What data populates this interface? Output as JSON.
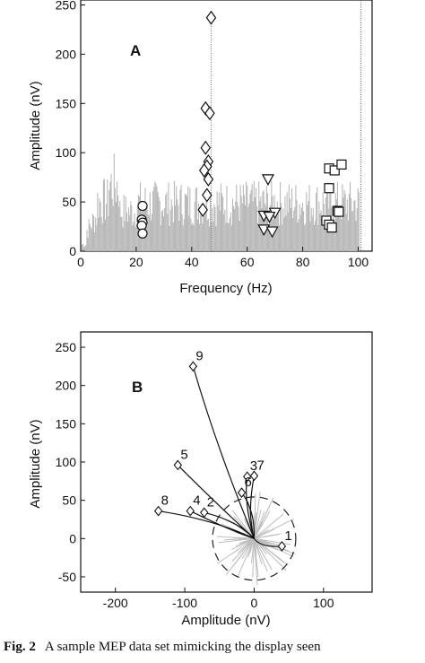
{
  "chart_data": [
    {
      "type": "scatter",
      "panel_label": "A",
      "xlabel": "Frequency (Hz)",
      "ylabel": "Amplitude (nV)",
      "xlim": [
        0,
        105
      ],
      "ylim": [
        0,
        255
      ],
      "xticks": [
        0,
        20,
        40,
        60,
        80,
        100
      ],
      "yticks": [
        0,
        50,
        100,
        150,
        200,
        250
      ],
      "grid": false,
      "background_spectrum_color": "#b9b9b9",
      "series": [
        {
          "marker": "circle",
          "points": [
            [
              22.3,
              46
            ],
            [
              22.0,
              32
            ],
            [
              22.3,
              29
            ],
            [
              22.0,
              26
            ],
            [
              22.3,
              18
            ]
          ]
        },
        {
          "marker": "diamond",
          "points": [
            [
              47,
              237
            ],
            [
              45,
              145
            ],
            [
              46.5,
              140
            ],
            [
              45,
              105
            ],
            [
              46,
              91
            ],
            [
              45.5,
              86
            ],
            [
              44.5,
              82
            ],
            [
              45.5,
              57
            ],
            [
              44,
              42
            ],
            [
              46,
              73
            ]
          ]
        },
        {
          "marker": "triangle-down",
          "points": [
            [
              67.5,
              73
            ],
            [
              66,
              36
            ],
            [
              70,
              39
            ],
            [
              68,
              35
            ],
            [
              66,
              22
            ],
            [
              69,
              20
            ]
          ]
        },
        {
          "marker": "square",
          "points": [
            [
              89.5,
              84
            ],
            [
              91.5,
              82
            ],
            [
              94,
              88
            ],
            [
              89.5,
              64
            ],
            [
              92.5,
              41
            ],
            [
              93,
              40
            ],
            [
              88.5,
              31
            ],
            [
              89.5,
              27
            ],
            [
              90.5,
              24
            ]
          ]
        }
      ],
      "threshold_line": {
        "x": 101
      }
    },
    {
      "type": "scatter",
      "panel_label": "B",
      "xlabel": "Amplitude (nV)",
      "ylabel": "Amplitude (nV)",
      "xlim": [
        -250,
        170
      ],
      "ylim": [
        -70,
        270
      ],
      "xticks": [
        -200,
        -100,
        0,
        100
      ],
      "yticks": [
        -50,
        0,
        50,
        100,
        150,
        200,
        250
      ],
      "grid": false,
      "circle_radius": 60,
      "vectors": [
        {
          "label": "1",
          "x": 40,
          "y": -10
        },
        {
          "label": "2",
          "x": -72,
          "y": 34
        },
        {
          "label": "3",
          "x": -10,
          "y": 81
        },
        {
          "label": "4",
          "x": -92,
          "y": 36
        },
        {
          "label": "5",
          "x": -110,
          "y": 96
        },
        {
          "label": "6",
          "x": -18,
          "y": 60
        },
        {
          "label": "7",
          "x": 0,
          "y": 82
        },
        {
          "label": "8",
          "x": -138,
          "y": 36
        },
        {
          "label": "9",
          "x": -88,
          "y": 225
        }
      ]
    }
  ],
  "caption": {
    "figure_number": "2",
    "text": "A sample MEP data set mimicking the display seen"
  }
}
